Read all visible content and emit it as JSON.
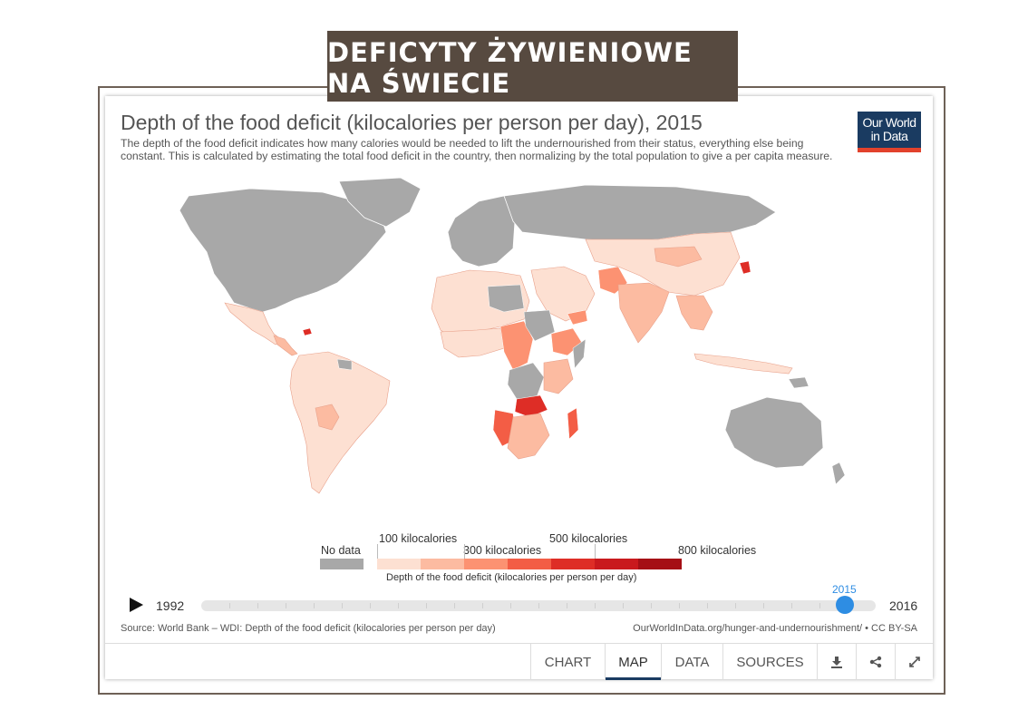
{
  "banner": {
    "text": "DEFICYTY ŻYWIENIOWE NA ŚWIECIE"
  },
  "chart": {
    "title": "Depth of the food deficit (kilocalories per person per day), 2015",
    "subtitle": "The depth of the food deficit indicates how many calories would be needed to lift the undernourished from their status, everything else being constant. This is calculated by estimating the total food deficit in the country, then normalizing by the total population to give a per capita measure.",
    "logo_line1": "Our World",
    "logo_line2": "in Data",
    "logo_colors": {
      "background": "#1a3b61",
      "bar": "#e2422c"
    }
  },
  "legend": {
    "no_data_label": "No data",
    "no_data_color": "#a8a8a8",
    "scale_title": "Depth of the food deficit (kilocalories per person per day)",
    "labels": [
      "100 kilocalories",
      "300 kilocalories",
      "500 kilocalories",
      "800 kilocalories"
    ],
    "colors": [
      "#fde0d2",
      "#fcbba1",
      "#fc9272",
      "#f35d45",
      "#de2d26",
      "#c9191d",
      "#a50f15"
    ]
  },
  "timeline": {
    "start_year": "1992",
    "end_year": "2016",
    "selected_year": "2015"
  },
  "source": {
    "text": "Source: World Bank – WDI: Depth of the food deficit (kilocalories per person per day)",
    "link": "OurWorldInData.org/hunger-and-undernourishment/ • CC BY-SA"
  },
  "tabs": {
    "chart": "CHART",
    "map": "MAP",
    "data": "DATA",
    "sources": "SOURCES",
    "active": "MAP"
  },
  "icons": {
    "download": "download-icon",
    "share": "share-icon",
    "expand": "expand-icon"
  }
}
